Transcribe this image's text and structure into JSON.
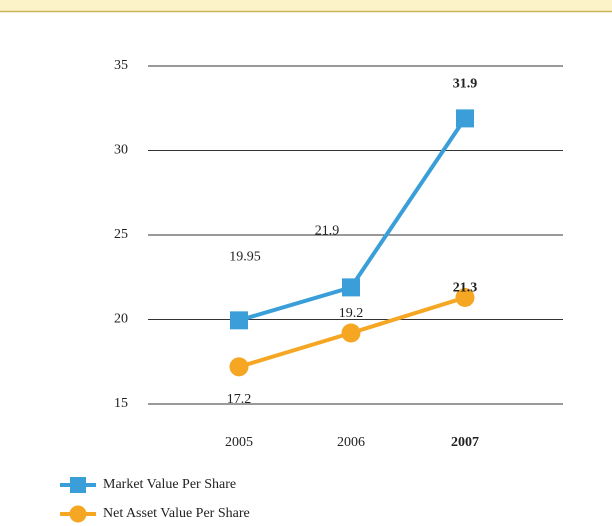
{
  "chart_data": {
    "type": "line",
    "categories": [
      "2005",
      "2006",
      "2007"
    ],
    "highlight_index": 2,
    "series": [
      {
        "name": "Market Value Per Share",
        "color": "#3a9fd8",
        "marker": "square",
        "values": [
          19.95,
          21.9,
          31.9
        ],
        "value_labels": [
          "19.95",
          "21.9",
          "31.9"
        ]
      },
      {
        "name": "Net Asset Value Per Share",
        "color": "#f5a623",
        "marker": "circle",
        "values": [
          17.2,
          19.2,
          21.3
        ],
        "value_labels": [
          "17.2",
          "19.2",
          "21.3"
        ]
      }
    ],
    "ylim": [
      15,
      35
    ],
    "yticks": [
      15,
      20,
      25,
      30,
      35
    ],
    "grid": true
  }
}
